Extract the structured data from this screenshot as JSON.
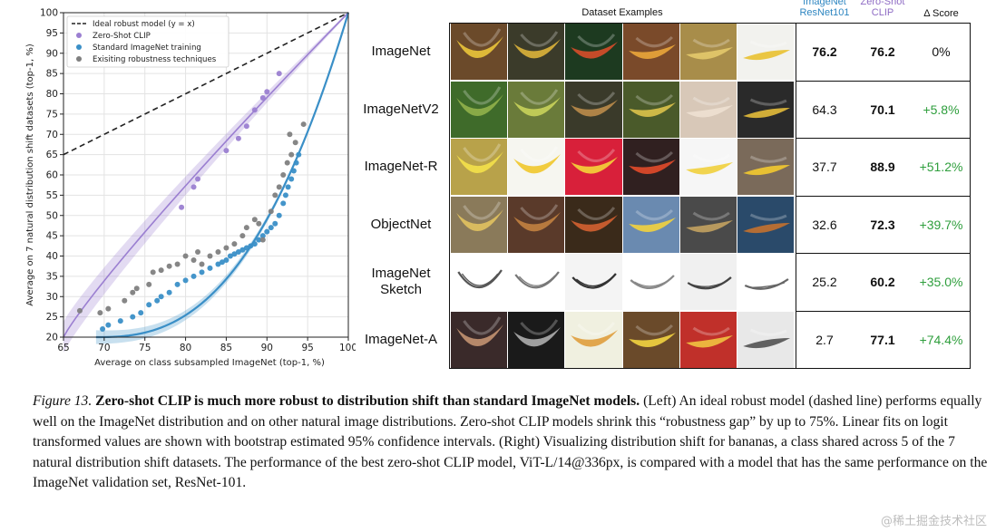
{
  "chart_data": {
    "type": "scatter",
    "xlabel": "Average on class subsampled ImageNet (top-1, %)",
    "ylabel": "Average on 7 natural distribution shift datasets (top-1, %)",
    "xlim": [
      65,
      100
    ],
    "ylim": [
      20,
      100
    ],
    "x_ticks": [
      "65",
      "70",
      "75",
      "80",
      "85",
      "90",
      "95",
      "100"
    ],
    "y_ticks": [
      "20",
      "25",
      "30",
      "35",
      "40",
      "45",
      "50",
      "55",
      "60",
      "65",
      "70",
      "75",
      "80",
      "85",
      "90",
      "95",
      "100"
    ],
    "grid": true,
    "legend_position": "top-left",
    "legend": [
      "Ideal robust model (y = x)",
      "Zero-Shot CLIP",
      "Standard ImageNet training",
      "Exisiting robustness techniques"
    ],
    "colors": {
      "ideal": "#222222",
      "clip": "#9b7fd1",
      "standard": "#3a8fc7",
      "robust": "#7f7f7f"
    },
    "series": [
      {
        "name": "Zero-Shot CLIP",
        "points": [
          [
            79.5,
            52
          ],
          [
            81,
            57
          ],
          [
            81.5,
            59
          ],
          [
            85,
            66
          ],
          [
            86.5,
            69
          ],
          [
            87.5,
            72
          ],
          [
            88.5,
            76
          ],
          [
            89.5,
            79
          ],
          [
            90,
            80.5
          ],
          [
            91.5,
            85
          ]
        ]
      },
      {
        "name": "Standard ImageNet training",
        "points": [
          [
            69.8,
            22
          ],
          [
            70.5,
            23
          ],
          [
            72,
            24
          ],
          [
            73.5,
            25
          ],
          [
            74.5,
            26
          ],
          [
            75.5,
            28
          ],
          [
            76.5,
            29
          ],
          [
            77,
            30
          ],
          [
            78,
            31
          ],
          [
            79,
            33
          ],
          [
            80,
            34
          ],
          [
            81,
            35
          ],
          [
            82,
            36
          ],
          [
            83,
            37
          ],
          [
            84,
            38
          ],
          [
            84.5,
            38.5
          ],
          [
            85,
            39
          ],
          [
            85.5,
            40
          ],
          [
            86,
            40.5
          ],
          [
            86.5,
            41
          ],
          [
            87,
            41.5
          ],
          [
            87.5,
            42
          ],
          [
            88,
            42.5
          ],
          [
            88.5,
            43
          ],
          [
            89,
            44
          ],
          [
            89.5,
            45
          ],
          [
            90,
            46
          ],
          [
            90.5,
            47
          ],
          [
            91,
            48
          ],
          [
            91.5,
            50
          ],
          [
            92,
            53
          ],
          [
            92.3,
            55
          ],
          [
            92.6,
            57
          ],
          [
            93,
            59
          ],
          [
            93.3,
            61
          ],
          [
            93.6,
            63
          ],
          [
            93.9,
            65
          ]
        ]
      },
      {
        "name": "Exisiting robustness techniques",
        "points": [
          [
            67,
            26.5
          ],
          [
            69.5,
            26
          ],
          [
            70.5,
            27
          ],
          [
            72.5,
            29
          ],
          [
            73.5,
            31
          ],
          [
            74,
            32
          ],
          [
            75.5,
            33
          ],
          [
            76,
            36
          ],
          [
            77,
            36.5
          ],
          [
            78,
            37.5
          ],
          [
            79,
            38
          ],
          [
            80,
            40
          ],
          [
            81,
            39
          ],
          [
            81.5,
            41
          ],
          [
            82,
            38
          ],
          [
            83,
            40
          ],
          [
            84,
            41
          ],
          [
            85,
            42
          ],
          [
            86,
            43
          ],
          [
            87,
            45
          ],
          [
            87.5,
            47
          ],
          [
            88.5,
            49
          ],
          [
            89,
            48
          ],
          [
            89.5,
            44
          ],
          [
            90.5,
            51
          ],
          [
            91,
            55
          ],
          [
            91.5,
            57
          ],
          [
            92,
            60
          ],
          [
            92.5,
            63
          ],
          [
            93,
            65
          ],
          [
            93.5,
            68
          ],
          [
            94.5,
            72.5
          ],
          [
            92.8,
            70
          ]
        ]
      }
    ]
  },
  "table": {
    "header_title": "Dataset Examples",
    "col_resnet": "ImageNet\nResNet101",
    "col_clip": "Zero-Shot\nCLIP",
    "col_delta": "Δ Score",
    "rows": [
      {
        "name": "ImageNet",
        "resnet": "76.2",
        "clip": "76.2",
        "delta": "0%"
      },
      {
        "name": "ImageNetV2",
        "resnet": "64.3",
        "clip": "70.1",
        "delta": "+5.8%"
      },
      {
        "name": "ImageNet-R",
        "resnet": "37.7",
        "clip": "88.9",
        "delta": "+51.2%"
      },
      {
        "name": "ObjectNet",
        "resnet": "32.6",
        "clip": "72.3",
        "delta": "+39.7%"
      },
      {
        "name": "ImageNet\nSketch",
        "resnet": "25.2",
        "clip": "60.2",
        "delta": "+35.0%"
      },
      {
        "name": "ImageNet-A",
        "resnet": "2.7",
        "clip": "77.1",
        "delta": "+74.4%"
      }
    ]
  },
  "caption": {
    "figure_label": "Figure 13.",
    "bold_title": "Zero-shot CLIP is much more robust to distribution shift than standard ImageNet models.",
    "body": "(Left) An ideal robust model (dashed line) performs equally well on the ImageNet distribution and on other natural image distributions. Zero-shot CLIP models shrink this “robustness gap” by up to 75%. Linear fits on logit transformed values are shown with bootstrap estimated 95% confidence intervals. (Right) Visualizing distribution shift for bananas, a class shared across 5 of the 7 natural distribution shift datasets. The performance of the best zero-shot CLIP model, ViT-L/14@336px, is compared with a model that has the same performance on the ImageNet validation set, ResNet-101."
  },
  "watermark": "@稀土掘金技术社区"
}
